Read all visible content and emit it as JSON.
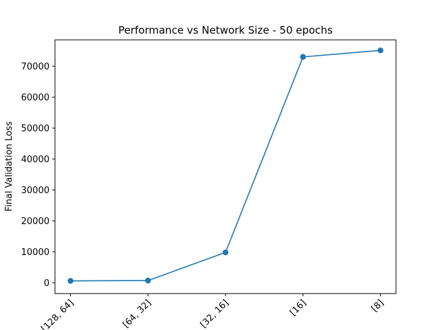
{
  "chart_data": {
    "type": "line",
    "title": "Performance vs Network Size - 50 epochs",
    "xlabel": "",
    "ylabel": "Final Validation Loss",
    "categories": [
      "[128, 64]",
      "[64, 32]",
      "[32, 16]",
      "[16]",
      "[8]"
    ],
    "series": [
      {
        "values": [
          600,
          700,
          9800,
          73000,
          75100
        ],
        "color": "#1f77b4",
        "marker": "circle"
      }
    ],
    "ylim": [
      -3500,
      78500
    ],
    "yticks": [
      0,
      10000,
      20000,
      30000,
      40000,
      50000,
      60000,
      70000
    ],
    "xtick_rotation": 45,
    "grid": false,
    "legend": false
  }
}
